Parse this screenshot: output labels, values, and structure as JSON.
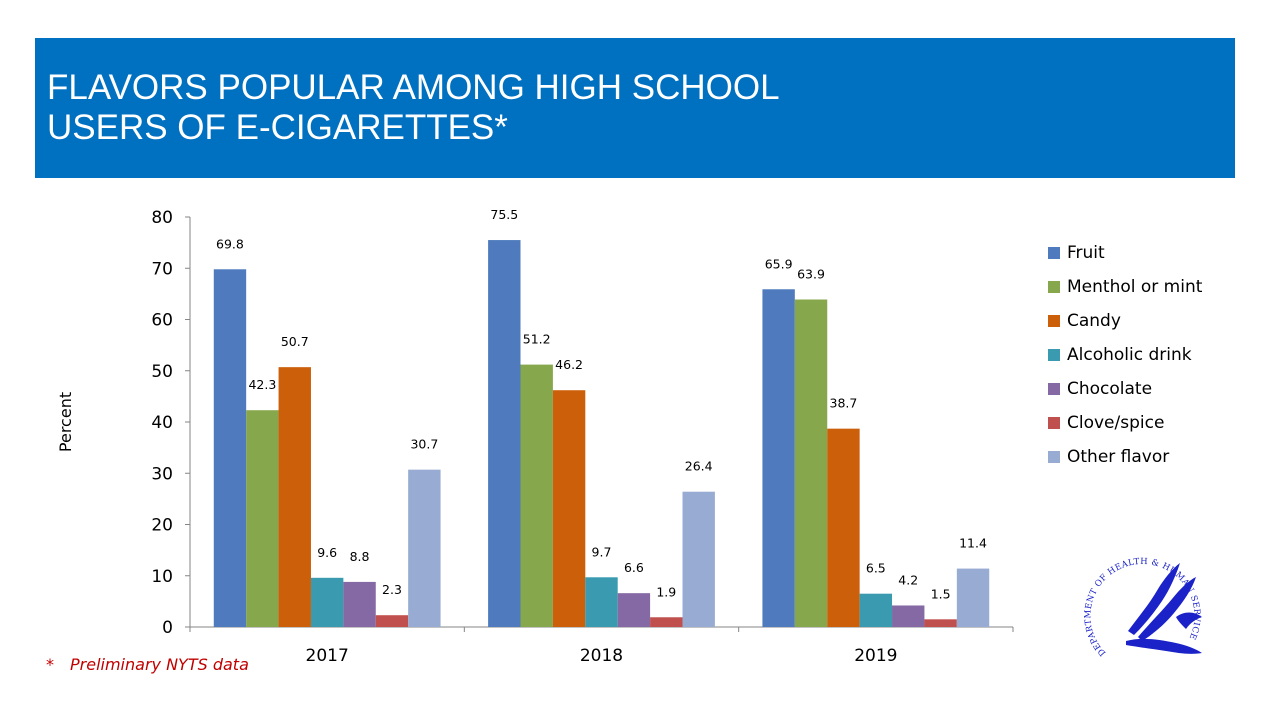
{
  "header": {
    "title_line1": "FLAVORS POPULAR AMONG HIGH SCHOOL",
    "title_line2": "USERS OF E-CIGARETTES*"
  },
  "footnote": {
    "marker": "*",
    "text": "Preliminary NYTS data"
  },
  "seal": {
    "icon": "hhs-seal-icon",
    "text": "DEPARTMENT OF HEALTH & HUMAN SERVICES · USA"
  },
  "colors": {
    "banner": "#0070c0",
    "footnote": "#c00000"
  },
  "chart_data": {
    "type": "bar",
    "categories": [
      "2017",
      "2018",
      "2019"
    ],
    "ylabel": "Percent",
    "xlabel": "",
    "ylim": [
      0,
      80
    ],
    "yticks": [
      0,
      10,
      20,
      30,
      40,
      50,
      60,
      70,
      80
    ],
    "grid": false,
    "legend_position": "right",
    "data_labels": true,
    "series": [
      {
        "name": "Fruit",
        "color": "#4f7bbe",
        "values": [
          69.8,
          75.5,
          65.9
        ]
      },
      {
        "name": "Menthol or mint",
        "color": "#86a74c",
        "values": [
          42.3,
          51.2,
          63.9
        ]
      },
      {
        "name": "Candy",
        "color": "#cc5f0a",
        "values": [
          50.7,
          46.2,
          38.7
        ]
      },
      {
        "name": "Alcoholic drink",
        "color": "#3a9bb0",
        "values": [
          9.6,
          9.7,
          6.5
        ]
      },
      {
        "name": "Chocolate",
        "color": "#8569a5",
        "values": [
          8.8,
          6.6,
          4.2
        ]
      },
      {
        "name": "Clove/spice",
        "color": "#c0504d",
        "values": [
          2.3,
          1.9,
          1.5
        ]
      },
      {
        "name": "Other flavor",
        "color": "#98abd3",
        "values": [
          30.7,
          26.4,
          11.4
        ]
      }
    ]
  }
}
